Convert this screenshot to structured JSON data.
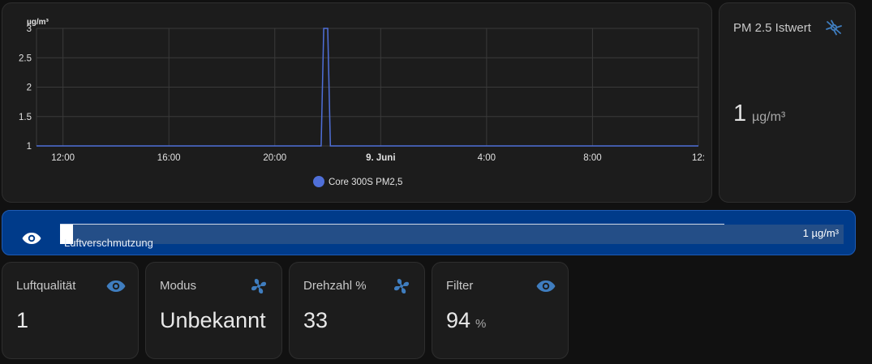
{
  "chart": {
    "unit": "µg/m³",
    "y_ticks": [
      "3",
      "2.5",
      "2",
      "1.5",
      "1"
    ],
    "x_ticks": [
      {
        "label": "12:00",
        "bold": false
      },
      {
        "label": "16:00",
        "bold": false
      },
      {
        "label": "20:00",
        "bold": false
      },
      {
        "label": "9. Juni",
        "bold": true
      },
      {
        "label": "4:00",
        "bold": false
      },
      {
        "label": "8:00",
        "bold": false
      },
      {
        "label": "12:",
        "bold": false
      }
    ],
    "legend": "Core 300S PM2,5",
    "line_color": "#4f6fd8"
  },
  "chart_data": {
    "type": "line",
    "title": "",
    "xlabel": "",
    "ylabel": "µg/m³",
    "ylim": [
      1,
      3
    ],
    "x_unit": "hours from 12:00 (8. Juni)",
    "series": [
      {
        "name": "Core 300S PM2,5",
        "points": [
          [
            0,
            1
          ],
          [
            10.6,
            1
          ],
          [
            10.75,
            1
          ],
          [
            10.85,
            3
          ],
          [
            11.0,
            3
          ],
          [
            11.1,
            1
          ],
          [
            25,
            1
          ]
        ]
      }
    ]
  },
  "pm": {
    "title": "PM 2.5 Istwert",
    "value": "1",
    "unit": "µg/m³",
    "icon": "air-purifier-icon",
    "icon_color": "#3f7dbf"
  },
  "bar": {
    "label": "Luftverschmutzung",
    "value": "1 µg/m³",
    "fill_fraction": 0.017,
    "icon": "eye-icon"
  },
  "tiles": [
    {
      "title": "Luftqualität",
      "value": "1",
      "unit": "",
      "icon": "eye-icon"
    },
    {
      "title": "Modus",
      "value": "Unbekannt",
      "unit": "",
      "icon": "fan-icon"
    },
    {
      "title": "Drehzahl %",
      "value": "33",
      "unit": "",
      "icon": "fan-icon"
    },
    {
      "title": "Filter",
      "value": "94",
      "unit": "%",
      "icon": "eye-icon"
    }
  ],
  "colors": {
    "accent": "#3f7dbf",
    "bar_background": "#003b8a"
  }
}
